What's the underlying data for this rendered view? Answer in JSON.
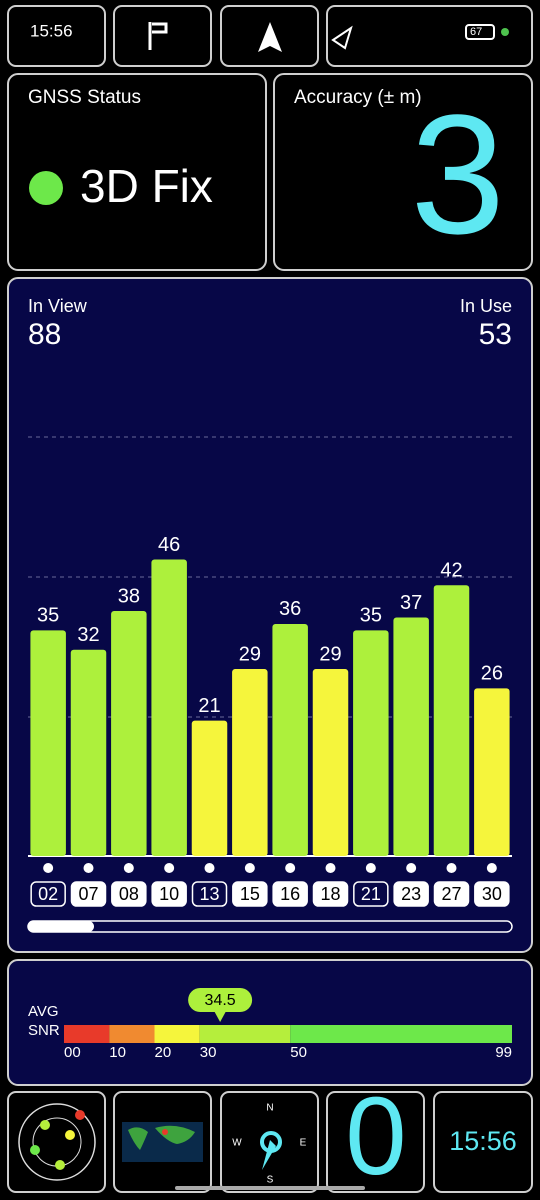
{
  "status": {
    "time": "15:56",
    "battery": 67
  },
  "gnss_status": {
    "label": "GNSS Status",
    "value": "3D Fix"
  },
  "accuracy": {
    "label": "Accuracy (± m)",
    "value": 3
  },
  "satellites": {
    "type": "bar",
    "in_view_label": "In View",
    "in_view": 88,
    "in_use_label": "In Use",
    "in_use": 53,
    "categories": [
      "02",
      "07",
      "08",
      "10",
      "13",
      "15",
      "16",
      "18",
      "21",
      "23",
      "27",
      "30"
    ],
    "values": [
      35,
      32,
      38,
      46,
      21,
      29,
      36,
      29,
      35,
      37,
      42,
      26
    ],
    "used": [
      false,
      true,
      true,
      true,
      false,
      true,
      true,
      true,
      false,
      true,
      true,
      true
    ],
    "colors": [
      "#adf03c",
      "#adf03c",
      "#adf03c",
      "#adf03c",
      "#f5f53c",
      "#f5f53c",
      "#adf03c",
      "#f5f53c",
      "#adf03c",
      "#adf03c",
      "#adf03c",
      "#f5f53c"
    ],
    "ylim": [
      0,
      65
    ]
  },
  "snr": {
    "label_1": "AVG",
    "label_2": "SNR",
    "avg": 34.5,
    "lim": [
      0,
      99
    ],
    "ticks": [
      {
        "value": 0,
        "label": "00"
      },
      10,
      20,
      30,
      50,
      99
    ],
    "segment_colors": [
      "#e83a2a",
      "#f08a30",
      "#f5f53c",
      "#b5ee3c",
      "#6de84a"
    ]
  },
  "compass": {
    "north": "N",
    "east": "E",
    "south": "S",
    "west": "W"
  },
  "tiles": {
    "count": 0,
    "clock": "15:56"
  }
}
